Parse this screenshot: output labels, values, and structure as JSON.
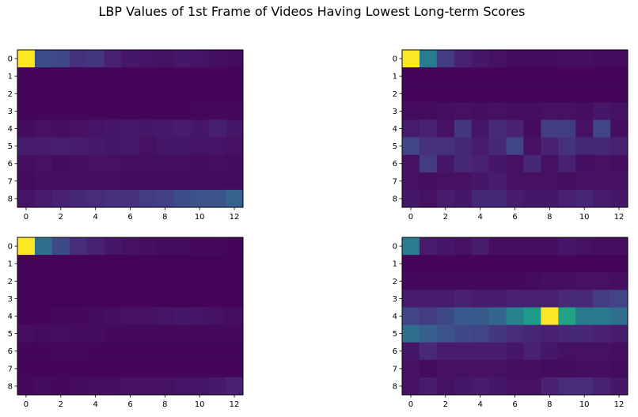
{
  "title": "LBP Values of 1st Frame of Videos Having Lowest Long-term Scores",
  "chart_data": [
    {
      "type": "heatmap",
      "colormap": "viridis",
      "vmin": 0,
      "vmax": 1,
      "x_ticks": [
        "0",
        "2",
        "4",
        "6",
        "8",
        "10",
        "12"
      ],
      "y_ticks": [
        "0",
        "1",
        "2",
        "3",
        "4",
        "5",
        "6",
        "7",
        "8"
      ],
      "values": [
        [
          1.0,
          0.3,
          0.28,
          0.18,
          0.2,
          0.12,
          0.08,
          0.07,
          0.06,
          0.08,
          0.07,
          0.05,
          0.04
        ],
        [
          0.02,
          0.02,
          0.02,
          0.02,
          0.02,
          0.02,
          0.02,
          0.02,
          0.02,
          0.02,
          0.02,
          0.02,
          0.02
        ],
        [
          0.01,
          0.01,
          0.01,
          0.01,
          0.01,
          0.01,
          0.01,
          0.01,
          0.01,
          0.01,
          0.01,
          0.01,
          0.01
        ],
        [
          0.02,
          0.02,
          0.02,
          0.02,
          0.02,
          0.02,
          0.02,
          0.02,
          0.02,
          0.02,
          0.03,
          0.03,
          0.03
        ],
        [
          0.04,
          0.06,
          0.05,
          0.06,
          0.07,
          0.08,
          0.09,
          0.08,
          0.09,
          0.1,
          0.08,
          0.11,
          0.08
        ],
        [
          0.1,
          0.1,
          0.11,
          0.1,
          0.09,
          0.08,
          0.09,
          0.06,
          0.08,
          0.08,
          0.07,
          0.07,
          0.06
        ],
        [
          0.05,
          0.06,
          0.04,
          0.05,
          0.06,
          0.06,
          0.05,
          0.05,
          0.05,
          0.05,
          0.04,
          0.05,
          0.04
        ],
        [
          0.04,
          0.05,
          0.05,
          0.05,
          0.05,
          0.05,
          0.04,
          0.04,
          0.04,
          0.04,
          0.04,
          0.04,
          0.04
        ],
        [
          0.07,
          0.1,
          0.12,
          0.14,
          0.16,
          0.18,
          0.18,
          0.22,
          0.24,
          0.3,
          0.32,
          0.32,
          0.4
        ]
      ]
    },
    {
      "type": "heatmap",
      "colormap": "viridis",
      "vmin": 0,
      "vmax": 1,
      "x_ticks": [
        "0",
        "2",
        "4",
        "6",
        "8",
        "10",
        "12"
      ],
      "y_ticks": [
        "0",
        "1",
        "2",
        "3",
        "4",
        "5",
        "6",
        "7",
        "8"
      ],
      "values": [
        [
          1.0,
          0.52,
          0.22,
          0.12,
          0.08,
          0.06,
          0.04,
          0.04,
          0.04,
          0.05,
          0.05,
          0.04,
          0.04
        ],
        [
          0.02,
          0.02,
          0.02,
          0.02,
          0.02,
          0.02,
          0.02,
          0.02,
          0.02,
          0.02,
          0.02,
          0.02,
          0.02
        ],
        [
          0.02,
          0.02,
          0.02,
          0.02,
          0.02,
          0.02,
          0.02,
          0.02,
          0.02,
          0.02,
          0.02,
          0.02,
          0.02
        ],
        [
          0.04,
          0.04,
          0.05,
          0.06,
          0.05,
          0.06,
          0.05,
          0.05,
          0.06,
          0.06,
          0.05,
          0.08,
          0.06
        ],
        [
          0.1,
          0.12,
          0.06,
          0.2,
          0.08,
          0.15,
          0.12,
          0.04,
          0.22,
          0.22,
          0.06,
          0.25,
          0.05
        ],
        [
          0.25,
          0.18,
          0.18,
          0.14,
          0.1,
          0.14,
          0.25,
          0.06,
          0.12,
          0.18,
          0.14,
          0.14,
          0.12
        ],
        [
          0.06,
          0.22,
          0.08,
          0.14,
          0.12,
          0.08,
          0.06,
          0.14,
          0.06,
          0.12,
          0.05,
          0.06,
          0.05
        ],
        [
          0.06,
          0.05,
          0.06,
          0.06,
          0.08,
          0.1,
          0.06,
          0.06,
          0.06,
          0.05,
          0.06,
          0.06,
          0.06
        ],
        [
          0.08,
          0.06,
          0.1,
          0.08,
          0.14,
          0.14,
          0.1,
          0.08,
          0.08,
          0.12,
          0.14,
          0.1,
          0.08
        ]
      ]
    },
    {
      "type": "heatmap",
      "colormap": "viridis",
      "vmin": 0,
      "vmax": 1,
      "x_ticks": [
        "0",
        "2",
        "4",
        "6",
        "8",
        "10",
        "12"
      ],
      "y_ticks": [
        "0",
        "1",
        "2",
        "3",
        "4",
        "5",
        "6",
        "7",
        "8"
      ],
      "values": [
        [
          1.0,
          0.45,
          0.28,
          0.16,
          0.12,
          0.08,
          0.06,
          0.05,
          0.04,
          0.04,
          0.03,
          0.03,
          0.02
        ],
        [
          0.01,
          0.01,
          0.01,
          0.01,
          0.01,
          0.01,
          0.01,
          0.01,
          0.01,
          0.01,
          0.01,
          0.01,
          0.01
        ],
        [
          0.01,
          0.01,
          0.01,
          0.01,
          0.01,
          0.01,
          0.01,
          0.01,
          0.01,
          0.01,
          0.01,
          0.01,
          0.01
        ],
        [
          0.01,
          0.01,
          0.01,
          0.01,
          0.01,
          0.01,
          0.01,
          0.01,
          0.01,
          0.01,
          0.01,
          0.01,
          0.01
        ],
        [
          0.02,
          0.02,
          0.03,
          0.03,
          0.04,
          0.05,
          0.06,
          0.06,
          0.07,
          0.08,
          0.07,
          0.06,
          0.05
        ],
        [
          0.05,
          0.04,
          0.05,
          0.04,
          0.04,
          0.03,
          0.03,
          0.03,
          0.03,
          0.03,
          0.03,
          0.03,
          0.03
        ],
        [
          0.02,
          0.02,
          0.03,
          0.03,
          0.02,
          0.02,
          0.02,
          0.02,
          0.02,
          0.02,
          0.02,
          0.02,
          0.02
        ],
        [
          0.02,
          0.02,
          0.02,
          0.02,
          0.02,
          0.02,
          0.02,
          0.02,
          0.02,
          0.02,
          0.02,
          0.02,
          0.02
        ],
        [
          0.03,
          0.04,
          0.03,
          0.04,
          0.05,
          0.05,
          0.06,
          0.06,
          0.06,
          0.07,
          0.07,
          0.09,
          0.12
        ]
      ]
    },
    {
      "type": "heatmap",
      "colormap": "viridis",
      "vmin": 0,
      "vmax": 1,
      "x_ticks": [
        "0",
        "2",
        "4",
        "6",
        "8",
        "10",
        "12"
      ],
      "y_ticks": [
        "0",
        "1",
        "2",
        "3",
        "4",
        "5",
        "6",
        "7",
        "8"
      ],
      "values": [
        [
          0.52,
          0.1,
          0.08,
          0.06,
          0.1,
          0.05,
          0.05,
          0.05,
          0.05,
          0.08,
          0.06,
          0.05,
          0.05
        ],
        [
          0.02,
          0.02,
          0.02,
          0.02,
          0.02,
          0.02,
          0.02,
          0.02,
          0.02,
          0.02,
          0.02,
          0.02,
          0.02
        ],
        [
          0.03,
          0.03,
          0.03,
          0.03,
          0.03,
          0.03,
          0.03,
          0.04,
          0.05,
          0.05,
          0.06,
          0.06,
          0.05
        ],
        [
          0.1,
          0.1,
          0.1,
          0.12,
          0.1,
          0.1,
          0.12,
          0.12,
          0.12,
          0.15,
          0.15,
          0.22,
          0.25
        ],
        [
          0.25,
          0.22,
          0.28,
          0.35,
          0.35,
          0.42,
          0.55,
          0.68,
          1.0,
          0.72,
          0.5,
          0.5,
          0.45
        ],
        [
          0.45,
          0.38,
          0.32,
          0.28,
          0.25,
          0.2,
          0.16,
          0.14,
          0.12,
          0.14,
          0.14,
          0.12,
          0.1
        ],
        [
          0.08,
          0.15,
          0.1,
          0.1,
          0.1,
          0.1,
          0.08,
          0.12,
          0.08,
          0.06,
          0.06,
          0.06,
          0.05
        ],
        [
          0.06,
          0.04,
          0.06,
          0.06,
          0.06,
          0.06,
          0.05,
          0.05,
          0.04,
          0.04,
          0.05,
          0.05,
          0.04
        ],
        [
          0.06,
          0.1,
          0.06,
          0.08,
          0.1,
          0.08,
          0.06,
          0.06,
          0.12,
          0.16,
          0.16,
          0.12,
          0.08
        ]
      ]
    }
  ]
}
